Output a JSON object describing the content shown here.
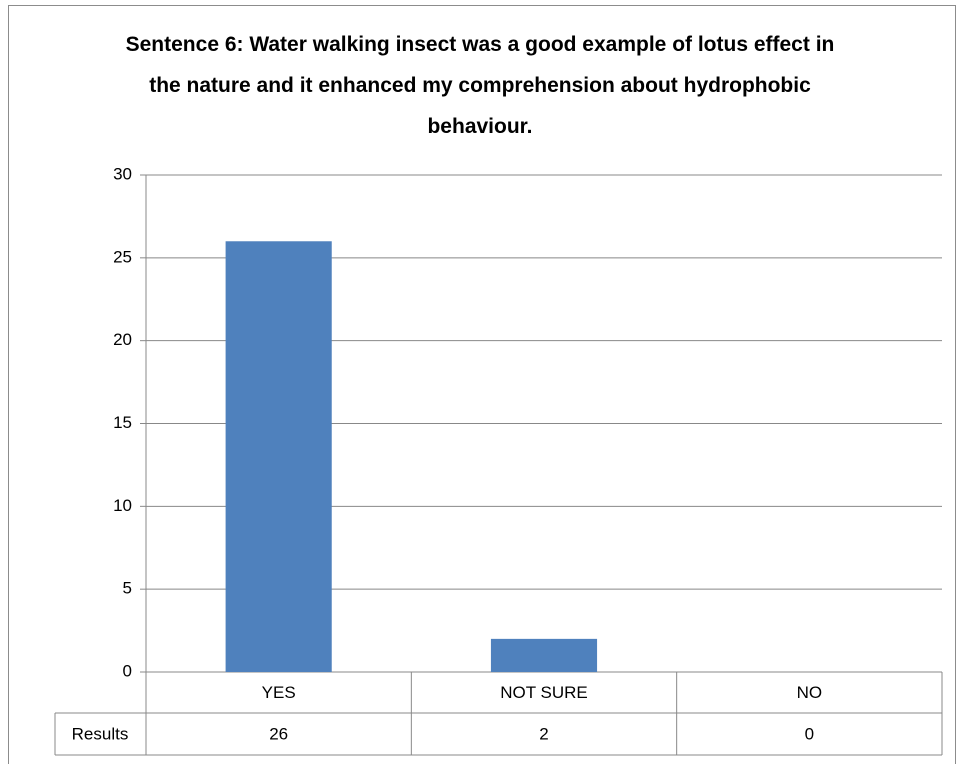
{
  "chart_data": {
    "type": "bar",
    "title": "Sentence 6: Water walking insect was a good example of lotus effect in the nature and it enhanced my comprehension about hydrophobic behaviour.",
    "categories": [
      "YES",
      "NOT SURE",
      "NO"
    ],
    "series": [
      {
        "name": "Results",
        "color": "#4f81bd",
        "values": [
          26,
          2,
          0
        ]
      }
    ],
    "ylim": [
      0,
      30
    ],
    "yticks": [
      0,
      5,
      10,
      15,
      20,
      25,
      30
    ],
    "grid": true,
    "data_table": true
  }
}
